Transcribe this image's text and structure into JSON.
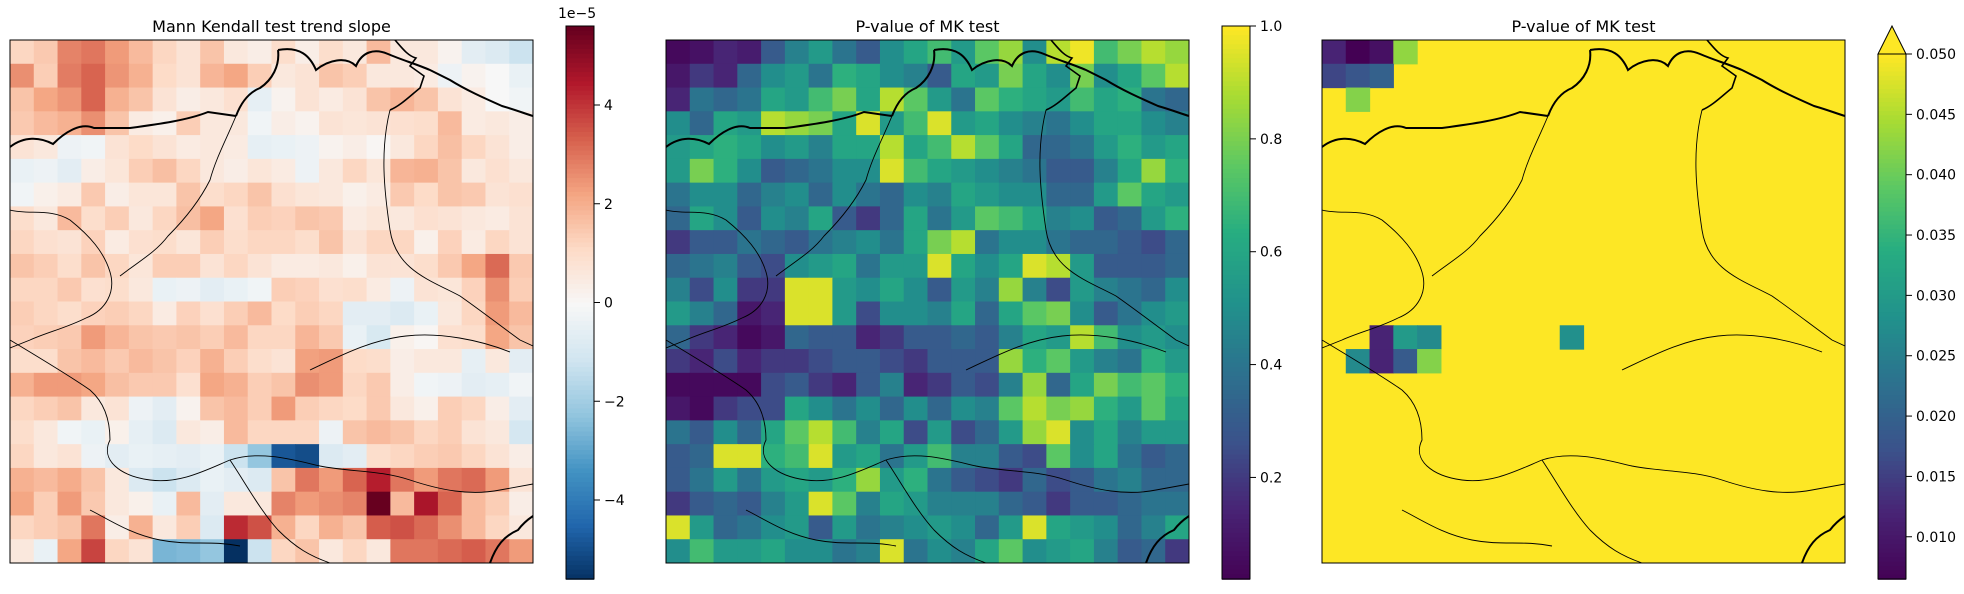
{
  "panels": [
    {
      "id": "slope",
      "title": "Mann Kendall test trend slope",
      "colormap": "RdBu_r",
      "colorbar": {
        "min": -5.6,
        "max": 5.6,
        "ticks": [
          -4,
          -2,
          0,
          2,
          4
        ],
        "tick_labels": [
          "−4",
          "−2",
          "0",
          "2",
          "4"
        ],
        "offset_label": "1e−5",
        "extend": "neither"
      }
    },
    {
      "id": "pvalue",
      "title": "P-value of MK test",
      "colormap": "viridis",
      "colorbar": {
        "min": 0.02,
        "max": 1.0,
        "ticks": [
          0.2,
          0.4,
          0.6,
          0.8,
          1.0
        ],
        "tick_labels": [
          "0.2",
          "0.4",
          "0.6",
          "0.8",
          "1.0"
        ],
        "offset_label": "",
        "extend": "neither"
      }
    },
    {
      "id": "pvalue_clipped",
      "title": "P-value of MK test",
      "colormap": "viridis",
      "colorbar": {
        "min": 0.0065,
        "max": 0.05,
        "ticks": [
          0.01,
          0.015,
          0.02,
          0.025,
          0.03,
          0.035,
          0.04,
          0.045,
          0.05
        ],
        "tick_labels": [
          "0.010",
          "0.015",
          "0.020",
          "0.025",
          "0.030",
          "0.035",
          "0.040",
          "0.045",
          "0.050"
        ],
        "offset_label": "",
        "extend": "max"
      }
    }
  ],
  "chart_data": [
    {
      "type": "heatmap",
      "title": "Mann Kendall test trend slope",
      "value_scale": "1e-5",
      "rows": 22,
      "cols": 22,
      "values": [
        [
          1.2,
          1.5,
          2.8,
          3.0,
          2.4,
          1.8,
          1.2,
          0.8,
          1.6,
          0.6,
          0.4,
          1.0,
          0.4,
          1.0,
          0.6,
          1.8,
          0.6,
          0.6,
          0.2,
          -0.6,
          -0.8,
          -1.2
        ],
        [
          2.6,
          1.4,
          2.9,
          3.3,
          2.5,
          2.0,
          1.1,
          0.8,
          1.9,
          2.2,
          1.4,
          0.6,
          0.8,
          1.6,
          1.4,
          0.6,
          0.6,
          0.5,
          -0.3,
          0.2,
          0.0,
          -0.4
        ],
        [
          1.6,
          2.2,
          2.5,
          3.3,
          2.0,
          1.6,
          0.8,
          0.4,
          0.6,
          0.9,
          -0.5,
          0.2,
          0.8,
          0.5,
          0.8,
          1.6,
          1.9,
          1.6,
          0.8,
          0.5,
          0.0,
          -0.2
        ],
        [
          1.5,
          1.8,
          2.0,
          2.6,
          1.6,
          0.5,
          0.3,
          1.4,
          0.6,
          0.6,
          -0.2,
          0.4,
          0.2,
          0.8,
          0.7,
          0.8,
          0.9,
          1.0,
          1.8,
          0.5,
          0.6,
          0.4
        ],
        [
          0.8,
          0.6,
          -0.3,
          -0.2,
          0.8,
          1.1,
          0.8,
          0.5,
          0.6,
          0.5,
          -0.5,
          -0.4,
          -0.3,
          0.2,
          0.4,
          0.1,
          0.6,
          1.2,
          1.7,
          1.2,
          0.8,
          0.4
        ],
        [
          -0.4,
          -0.3,
          -0.6,
          0.4,
          0.7,
          1.4,
          1.7,
          1.2,
          0.6,
          0.4,
          0.7,
          0.5,
          -0.3,
          0.6,
          1.2,
          0.7,
          1.9,
          2.0,
          1.6,
          0.6,
          0.9,
          0.6
        ],
        [
          -0.2,
          0.3,
          0.5,
          1.5,
          0.4,
          0.7,
          0.7,
          1.6,
          1.0,
          1.2,
          1.6,
          0.9,
          0.7,
          0.6,
          0.3,
          0.5,
          1.5,
          1.1,
          1.6,
          1.5,
          0.8,
          0.9
        ],
        [
          1.0,
          0.6,
          1.8,
          1.0,
          1.4,
          0.6,
          1.2,
          1.7,
          2.2,
          0.9,
          1.4,
          1.3,
          1.6,
          1.5,
          0.5,
          0.7,
          0.6,
          0.9,
          0.8,
          0.6,
          0.5,
          0.8
        ],
        [
          1.2,
          0.9,
          0.8,
          1.3,
          0.5,
          0.9,
          1.0,
          0.7,
          1.4,
          1.0,
          1.2,
          1.2,
          1.0,
          1.6,
          0.8,
          1.2,
          1.2,
          0.3,
          1.3,
          0.5,
          1.2,
          0.8
        ],
        [
          1.6,
          1.4,
          1.0,
          1.6,
          1.2,
          0.7,
          1.4,
          1.4,
          0.8,
          1.2,
          0.8,
          0.5,
          0.5,
          0.6,
          0.3,
          0.8,
          0.8,
          1.0,
          1.5,
          2.2,
          3.2,
          1.5
        ],
        [
          1.2,
          1.2,
          1.5,
          0.9,
          1.0,
          0.6,
          -0.4,
          -0.3,
          -0.6,
          -0.4,
          -0.2,
          1.4,
          1.3,
          0.9,
          1.0,
          0.5,
          -0.3,
          0.8,
          0.7,
          1.3,
          2.6,
          1.4
        ],
        [
          1.4,
          1.2,
          1.0,
          1.3,
          1.4,
          1.2,
          0.5,
          1.3,
          0.9,
          1.4,
          1.8,
          1.1,
          1.4,
          1.2,
          -0.6,
          -0.6,
          -0.8,
          -0.4,
          0.6,
          1.2,
          2.4,
          1.8
        ],
        [
          1.3,
          1.4,
          1.5,
          2.4,
          1.9,
          1.6,
          1.5,
          1.6,
          1.4,
          1.8,
          1.2,
          1.2,
          1.9,
          1.5,
          -0.4,
          -0.9,
          0.3,
          0.1,
          0.9,
          1.0,
          2.2,
          1.6
        ],
        [
          1.0,
          1.0,
          1.6,
          1.8,
          1.5,
          1.8,
          1.6,
          1.3,
          2.0,
          1.4,
          1.0,
          0.8,
          2.3,
          2.4,
          1.1,
          1.0,
          0.4,
          0.6,
          0.6,
          -0.5,
          0.6,
          -0.6
        ],
        [
          2.0,
          2.4,
          2.4,
          2.2,
          1.7,
          1.5,
          1.5,
          0.9,
          2.2,
          2.0,
          1.4,
          1.6,
          2.6,
          2.4,
          1.2,
          1.5,
          0.4,
          -0.2,
          -0.3,
          -0.6,
          -0.5,
          -0.2
        ],
        [
          1.2,
          1.4,
          1.6,
          0.6,
          0.8,
          -0.3,
          -0.6,
          0.2,
          1.6,
          1.8,
          1.4,
          2.4,
          1.4,
          1.2,
          1.1,
          1.5,
          0.6,
          0.3,
          1.4,
          1.2,
          0.4,
          -0.6
        ],
        [
          1.0,
          0.6,
          -0.2,
          -0.4,
          0.3,
          -0.5,
          -0.8,
          0.6,
          0.4,
          1.8,
          1.2,
          1.2,
          1.2,
          -0.3,
          1.6,
          1.8,
          1.6,
          1.2,
          1.4,
          0.8,
          0.6,
          -1.0
        ],
        [
          1.2,
          0.6,
          0.8,
          -0.3,
          -0.6,
          -0.4,
          -0.5,
          -0.6,
          -0.4,
          -1.2,
          -2.2,
          -4.8,
          -5.0,
          -0.8,
          -0.6,
          1.0,
          1.2,
          1.4,
          1.5,
          1.2,
          0.8,
          0.4
        ],
        [
          2.0,
          1.8,
          2.1,
          1.6,
          0.6,
          -0.8,
          -1.2,
          -0.8,
          -0.4,
          -0.6,
          -0.8,
          1.6,
          3.0,
          2.4,
          3.3,
          4.4,
          3.0,
          2.4,
          3.0,
          3.2,
          2.4,
          0.8
        ],
        [
          2.2,
          1.4,
          2.4,
          1.5,
          0.6,
          0.3,
          -0.4,
          1.8,
          -0.6,
          0.6,
          0.6,
          2.8,
          2.4,
          2.6,
          2.8,
          5.6,
          1.8,
          4.6,
          3.3,
          1.8,
          1.4,
          0.4
        ],
        [
          1.2,
          1.4,
          1.6,
          3.0,
          0.4,
          2.0,
          0.6,
          1.4,
          -0.8,
          4.2,
          3.6,
          2.0,
          1.2,
          2.0,
          1.6,
          3.4,
          3.6,
          3.2,
          2.6,
          1.8,
          1.2,
          0.6
        ],
        [
          0.6,
          -0.4,
          2.2,
          3.8,
          1.2,
          0.8,
          -2.6,
          -2.5,
          -2.2,
          -5.6,
          -1.2,
          1.2,
          1.6,
          0.6,
          1.2,
          0.6,
          3.0,
          3.0,
          3.2,
          3.4,
          3.0,
          2.4
        ]
      ]
    },
    {
      "type": "heatmap",
      "title": "P-value of MK test",
      "rows": 22,
      "cols": 22,
      "values": [
        [
          0.05,
          0.08,
          0.15,
          0.12,
          0.3,
          0.45,
          0.55,
          0.4,
          0.3,
          0.5,
          0.6,
          0.7,
          0.55,
          0.75,
          0.85,
          0.5,
          0.9,
          0.98,
          0.7,
          0.8,
          0.9,
          0.85
        ],
        [
          0.1,
          0.2,
          0.15,
          0.35,
          0.5,
          0.55,
          0.4,
          0.65,
          0.6,
          0.5,
          0.45,
          0.3,
          0.6,
          0.55,
          0.8,
          0.6,
          0.5,
          0.8,
          0.5,
          0.6,
          0.75,
          0.9
        ],
        [
          0.15,
          0.4,
          0.35,
          0.4,
          0.6,
          0.55,
          0.7,
          0.8,
          0.6,
          0.9,
          0.75,
          0.55,
          0.4,
          0.75,
          0.65,
          0.6,
          0.55,
          0.7,
          0.6,
          0.65,
          0.4,
          0.35
        ],
        [
          0.5,
          0.35,
          0.6,
          0.55,
          0.9,
          0.85,
          0.8,
          0.6,
          0.95,
          0.55,
          0.7,
          0.95,
          0.55,
          0.6,
          0.5,
          0.45,
          0.4,
          0.5,
          0.6,
          0.6,
          0.5,
          0.45
        ],
        [
          0.55,
          0.6,
          0.65,
          0.6,
          0.5,
          0.55,
          0.45,
          0.6,
          0.6,
          0.9,
          0.6,
          0.7,
          0.9,
          0.75,
          0.6,
          0.35,
          0.35,
          0.4,
          0.55,
          0.65,
          0.55,
          0.6
        ],
        [
          0.55,
          0.8,
          0.65,
          0.5,
          0.3,
          0.35,
          0.4,
          0.5,
          0.5,
          0.95,
          0.7,
          0.6,
          0.55,
          0.5,
          0.45,
          0.4,
          0.3,
          0.3,
          0.45,
          0.6,
          0.85,
          0.65
        ],
        [
          0.4,
          0.5,
          0.5,
          0.35,
          0.45,
          0.5,
          0.35,
          0.5,
          0.4,
          0.35,
          0.5,
          0.45,
          0.6,
          0.55,
          0.5,
          0.5,
          0.35,
          0.35,
          0.55,
          0.75,
          0.6,
          0.55
        ],
        [
          0.35,
          0.6,
          0.5,
          0.3,
          0.5,
          0.45,
          0.6,
          0.3,
          0.2,
          0.35,
          0.6,
          0.4,
          0.55,
          0.75,
          0.7,
          0.6,
          0.45,
          0.5,
          0.3,
          0.35,
          0.55,
          0.65
        ],
        [
          0.2,
          0.3,
          0.3,
          0.4,
          0.35,
          0.3,
          0.4,
          0.45,
          0.5,
          0.4,
          0.6,
          0.8,
          0.9,
          0.4,
          0.5,
          0.5,
          0.4,
          0.35,
          0.35,
          0.3,
          0.25,
          0.35
        ],
        [
          0.35,
          0.4,
          0.45,
          0.3,
          0.25,
          0.5,
          0.55,
          0.6,
          0.4,
          0.55,
          0.55,
          0.95,
          0.6,
          0.5,
          0.6,
          0.95,
          0.9,
          0.55,
          0.3,
          0.3,
          0.3,
          0.35
        ],
        [
          0.45,
          0.25,
          0.5,
          0.2,
          0.2,
          0.95,
          0.95,
          0.55,
          0.5,
          0.6,
          0.5,
          0.3,
          0.55,
          0.45,
          0.85,
          0.45,
          0.25,
          0.55,
          0.45,
          0.4,
          0.35,
          0.5
        ],
        [
          0.55,
          0.45,
          0.35,
          0.1,
          0.15,
          0.95,
          0.95,
          0.55,
          0.25,
          0.5,
          0.5,
          0.45,
          0.6,
          0.35,
          0.6,
          0.75,
          0.8,
          0.5,
          0.3,
          0.4,
          0.5,
          0.55
        ],
        [
          0.35,
          0.2,
          0.15,
          0.05,
          0.1,
          0.35,
          0.3,
          0.3,
          0.15,
          0.2,
          0.3,
          0.3,
          0.35,
          0.3,
          0.45,
          0.6,
          0.55,
          0.9,
          0.7,
          0.5,
          0.55,
          0.5
        ],
        [
          0.2,
          0.15,
          0.25,
          0.15,
          0.2,
          0.2,
          0.25,
          0.3,
          0.3,
          0.25,
          0.2,
          0.3,
          0.3,
          0.3,
          0.85,
          0.65,
          0.75,
          0.55,
          0.45,
          0.4,
          0.65,
          0.55
        ],
        [
          0.05,
          0.05,
          0.05,
          0.05,
          0.25,
          0.3,
          0.2,
          0.15,
          0.3,
          0.45,
          0.15,
          0.2,
          0.3,
          0.25,
          0.45,
          0.85,
          0.35,
          0.6,
          0.8,
          0.7,
          0.75,
          0.65
        ],
        [
          0.1,
          0.05,
          0.2,
          0.25,
          0.25,
          0.6,
          0.5,
          0.4,
          0.5,
          0.35,
          0.5,
          0.35,
          0.5,
          0.45,
          0.75,
          0.9,
          0.8,
          0.85,
          0.65,
          0.55,
          0.75,
          0.6
        ],
        [
          0.4,
          0.3,
          0.5,
          0.35,
          0.6,
          0.75,
          0.9,
          0.7,
          0.45,
          0.6,
          0.25,
          0.55,
          0.25,
          0.35,
          0.55,
          0.85,
          0.95,
          0.5,
          0.6,
          0.45,
          0.55,
          0.55
        ],
        [
          0.3,
          0.35,
          0.95,
          0.95,
          0.65,
          0.7,
          0.95,
          0.55,
          0.6,
          0.4,
          0.55,
          0.7,
          0.45,
          0.45,
          0.3,
          0.25,
          0.75,
          0.5,
          0.6,
          0.4,
          0.3,
          0.35
        ],
        [
          0.3,
          0.4,
          0.55,
          0.4,
          0.55,
          0.6,
          0.55,
          0.65,
          0.85,
          0.55,
          0.65,
          0.4,
          0.3,
          0.25,
          0.2,
          0.35,
          0.25,
          0.3,
          0.4,
          0.45,
          0.35,
          0.35
        ],
        [
          0.2,
          0.3,
          0.35,
          0.3,
          0.45,
          0.55,
          0.95,
          0.75,
          0.45,
          0.6,
          0.55,
          0.45,
          0.45,
          0.45,
          0.35,
          0.3,
          0.2,
          0.3,
          0.3,
          0.35,
          0.4,
          0.4
        ],
        [
          0.95,
          0.55,
          0.35,
          0.4,
          0.5,
          0.55,
          0.3,
          0.55,
          0.4,
          0.45,
          0.5,
          0.55,
          0.5,
          0.35,
          0.55,
          0.95,
          0.6,
          0.55,
          0.5,
          0.35,
          0.45,
          0.6
        ],
        [
          0.5,
          0.7,
          0.55,
          0.55,
          0.6,
          0.5,
          0.5,
          0.4,
          0.45,
          0.95,
          0.4,
          0.5,
          0.45,
          0.6,
          0.75,
          0.5,
          0.55,
          0.6,
          0.45,
          0.3,
          0.35,
          0.2
        ]
      ]
    },
    {
      "type": "heatmap",
      "title": "P-value of MK test",
      "rows": 22,
      "cols": 22,
      "background_value_note": "",
      "significant_cells": [
        {
          "row": 0,
          "col": 0,
          "value": 0.012
        },
        {
          "row": 0,
          "col": 1,
          "value": 0.0065
        },
        {
          "row": 0,
          "col": 2,
          "value": 0.009
        },
        {
          "row": 0,
          "col": 3,
          "value": 0.043
        },
        {
          "row": 1,
          "col": 0,
          "value": 0.016
        },
        {
          "row": 1,
          "col": 1,
          "value": 0.018
        },
        {
          "row": 1,
          "col": 2,
          "value": 0.02
        },
        {
          "row": 2,
          "col": 1,
          "value": 0.042
        },
        {
          "row": 12,
          "col": 2,
          "value": 0.012
        },
        {
          "row": 12,
          "col": 3,
          "value": 0.03
        },
        {
          "row": 12,
          "col": 4,
          "value": 0.027
        },
        {
          "row": 13,
          "col": 1,
          "value": 0.027
        },
        {
          "row": 13,
          "col": 2,
          "value": 0.012
        },
        {
          "row": 13,
          "col": 3,
          "value": 0.019
        },
        {
          "row": 13,
          "col": 4,
          "value": 0.042
        },
        {
          "row": 12,
          "col": 10,
          "value": 0.028
        }
      ]
    }
  ]
}
